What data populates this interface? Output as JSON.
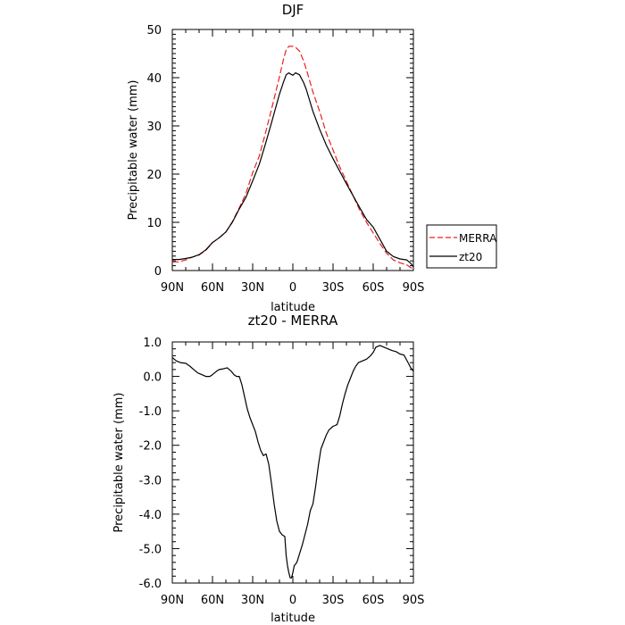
{
  "chart_data": [
    {
      "type": "line",
      "title": "DJF",
      "xlabel": "latitude",
      "ylabel": "Precipitable water (mm)",
      "xlim": [
        90,
        -90
      ],
      "ylim": [
        0,
        50
      ],
      "x_ticks": [
        90,
        60,
        30,
        0,
        -30,
        -60,
        -90
      ],
      "x_tick_labels": [
        "90N",
        "60N",
        "30N",
        "0",
        "30S",
        "60S",
        "90S"
      ],
      "y_ticks": [
        0,
        10,
        20,
        30,
        40,
        50
      ],
      "y_tick_labels": [
        "0",
        "10",
        "20",
        "30",
        "40",
        "50"
      ],
      "grid": false,
      "legend": {
        "placement": "outside-right",
        "entries": [
          "MERRA",
          "zt20"
        ]
      },
      "series": [
        {
          "name": "MERRA",
          "color": "#e8201e",
          "style": "dashed",
          "x": [
            90,
            85,
            80,
            75,
            70,
            65,
            60,
            55,
            50,
            45,
            40,
            35,
            30,
            25,
            20,
            15,
            10,
            7,
            5,
            3,
            2,
            0,
            -2,
            -5,
            -8,
            -10,
            -15,
            -20,
            -25,
            -30,
            -35,
            -40,
            -45,
            -50,
            -55,
            -60,
            -65,
            -70,
            -75,
            -80,
            -85,
            -88,
            -90
          ],
          "values": [
            1.8,
            1.8,
            2.2,
            2.8,
            3.2,
            4.2,
            5.8,
            6.8,
            8.0,
            10.2,
            13.0,
            16.0,
            20.3,
            23.8,
            29.0,
            34.5,
            40.2,
            43.8,
            45.8,
            46.5,
            46.5,
            46.5,
            46.3,
            45.5,
            43.5,
            41.8,
            37.0,
            33.0,
            28.5,
            25.0,
            21.5,
            18.5,
            15.5,
            12.5,
            10.0,
            7.8,
            5.6,
            3.6,
            2.2,
            1.6,
            1.2,
            0.6,
            0.4
          ]
        },
        {
          "name": "zt20",
          "color": "#000000",
          "style": "solid",
          "x": [
            90,
            85,
            80,
            75,
            70,
            65,
            60,
            55,
            50,
            45,
            40,
            35,
            30,
            25,
            20,
            15,
            10,
            7,
            5,
            3,
            2,
            0,
            -2,
            -5,
            -8,
            -10,
            -15,
            -20,
            -25,
            -30,
            -35,
            -40,
            -45,
            -50,
            -55,
            -60,
            -65,
            -70,
            -75,
            -80,
            -85,
            -88,
            -90
          ],
          "values": [
            2.3,
            2.3,
            2.5,
            2.8,
            3.3,
            4.3,
            5.8,
            6.8,
            8.0,
            10.1,
            12.8,
            15.2,
            18.6,
            22.1,
            26.7,
            31.6,
            36.6,
            39.1,
            40.6,
            41.0,
            40.8,
            40.5,
            41.0,
            40.6,
            39.0,
            37.6,
            33.0,
            29.3,
            26.0,
            23.2,
            20.6,
            18.0,
            15.5,
            13.0,
            10.6,
            9.0,
            6.5,
            4.0,
            2.9,
            2.4,
            2.2,
            1.5,
            0.8
          ]
        }
      ]
    },
    {
      "type": "line",
      "title": "zt20 - MERRA",
      "xlabel": "latitude",
      "ylabel": "Precipitable water (mm)",
      "xlim": [
        90,
        -90
      ],
      "ylim": [
        -6.0,
        1.0
      ],
      "x_ticks": [
        90,
        60,
        30,
        0,
        -30,
        -60,
        -90
      ],
      "x_tick_labels": [
        "90N",
        "60N",
        "30N",
        "0",
        "30S",
        "60S",
        "90S"
      ],
      "y_ticks": [
        1.0,
        0.0,
        -1.0,
        -2.0,
        -3.0,
        -4.0,
        -5.0,
        -6.0
      ],
      "y_tick_labels": [
        "1.0",
        "0.0",
        "-1.0",
        "-2.0",
        "-3.0",
        "-4.0",
        "-5.0",
        "-6.0"
      ],
      "grid": false,
      "series": [
        {
          "color": "#000000",
          "style": "solid",
          "x": [
            90,
            87,
            84,
            80,
            77,
            74,
            71,
            68,
            65,
            62,
            60,
            57,
            55,
            52,
            49,
            46,
            44,
            42,
            40,
            38,
            36,
            34,
            32,
            30,
            28,
            26,
            24,
            22,
            20,
            18,
            16,
            14,
            12,
            10,
            8,
            6,
            5,
            4,
            3,
            2,
            1,
            0,
            -1,
            -2,
            -3,
            -5,
            -7,
            -9,
            -11,
            -13,
            -15,
            -17,
            -19,
            -21,
            -23,
            -25,
            -27,
            -30,
            -33,
            -35,
            -37,
            -39,
            -41,
            -43,
            -45,
            -47,
            -49,
            -52,
            -55,
            -58,
            -60,
            -62,
            -65,
            -68,
            -71,
            -74,
            -77,
            -80,
            -83,
            -86,
            -88,
            -90
          ],
          "values": [
            0.55,
            0.45,
            0.4,
            0.38,
            0.3,
            0.2,
            0.1,
            0.05,
            0.0,
            0.0,
            0.05,
            0.15,
            0.2,
            0.22,
            0.25,
            0.15,
            0.05,
            0.0,
            0.0,
            -0.25,
            -0.6,
            -0.95,
            -1.2,
            -1.4,
            -1.6,
            -1.9,
            -2.15,
            -2.3,
            -2.25,
            -2.55,
            -3.1,
            -3.7,
            -4.2,
            -4.5,
            -4.6,
            -4.65,
            -5.2,
            -5.5,
            -5.7,
            -5.85,
            -5.85,
            -5.7,
            -5.5,
            -5.45,
            -5.4,
            -5.15,
            -4.9,
            -4.6,
            -4.3,
            -3.9,
            -3.7,
            -3.2,
            -2.6,
            -2.1,
            -1.9,
            -1.7,
            -1.55,
            -1.45,
            -1.4,
            -1.15,
            -0.8,
            -0.5,
            -0.25,
            -0.05,
            0.15,
            0.3,
            0.4,
            0.45,
            0.5,
            0.6,
            0.7,
            0.85,
            0.9,
            0.85,
            0.8,
            0.75,
            0.72,
            0.65,
            0.62,
            0.4,
            0.25,
            0.15
          ]
        }
      ]
    }
  ]
}
